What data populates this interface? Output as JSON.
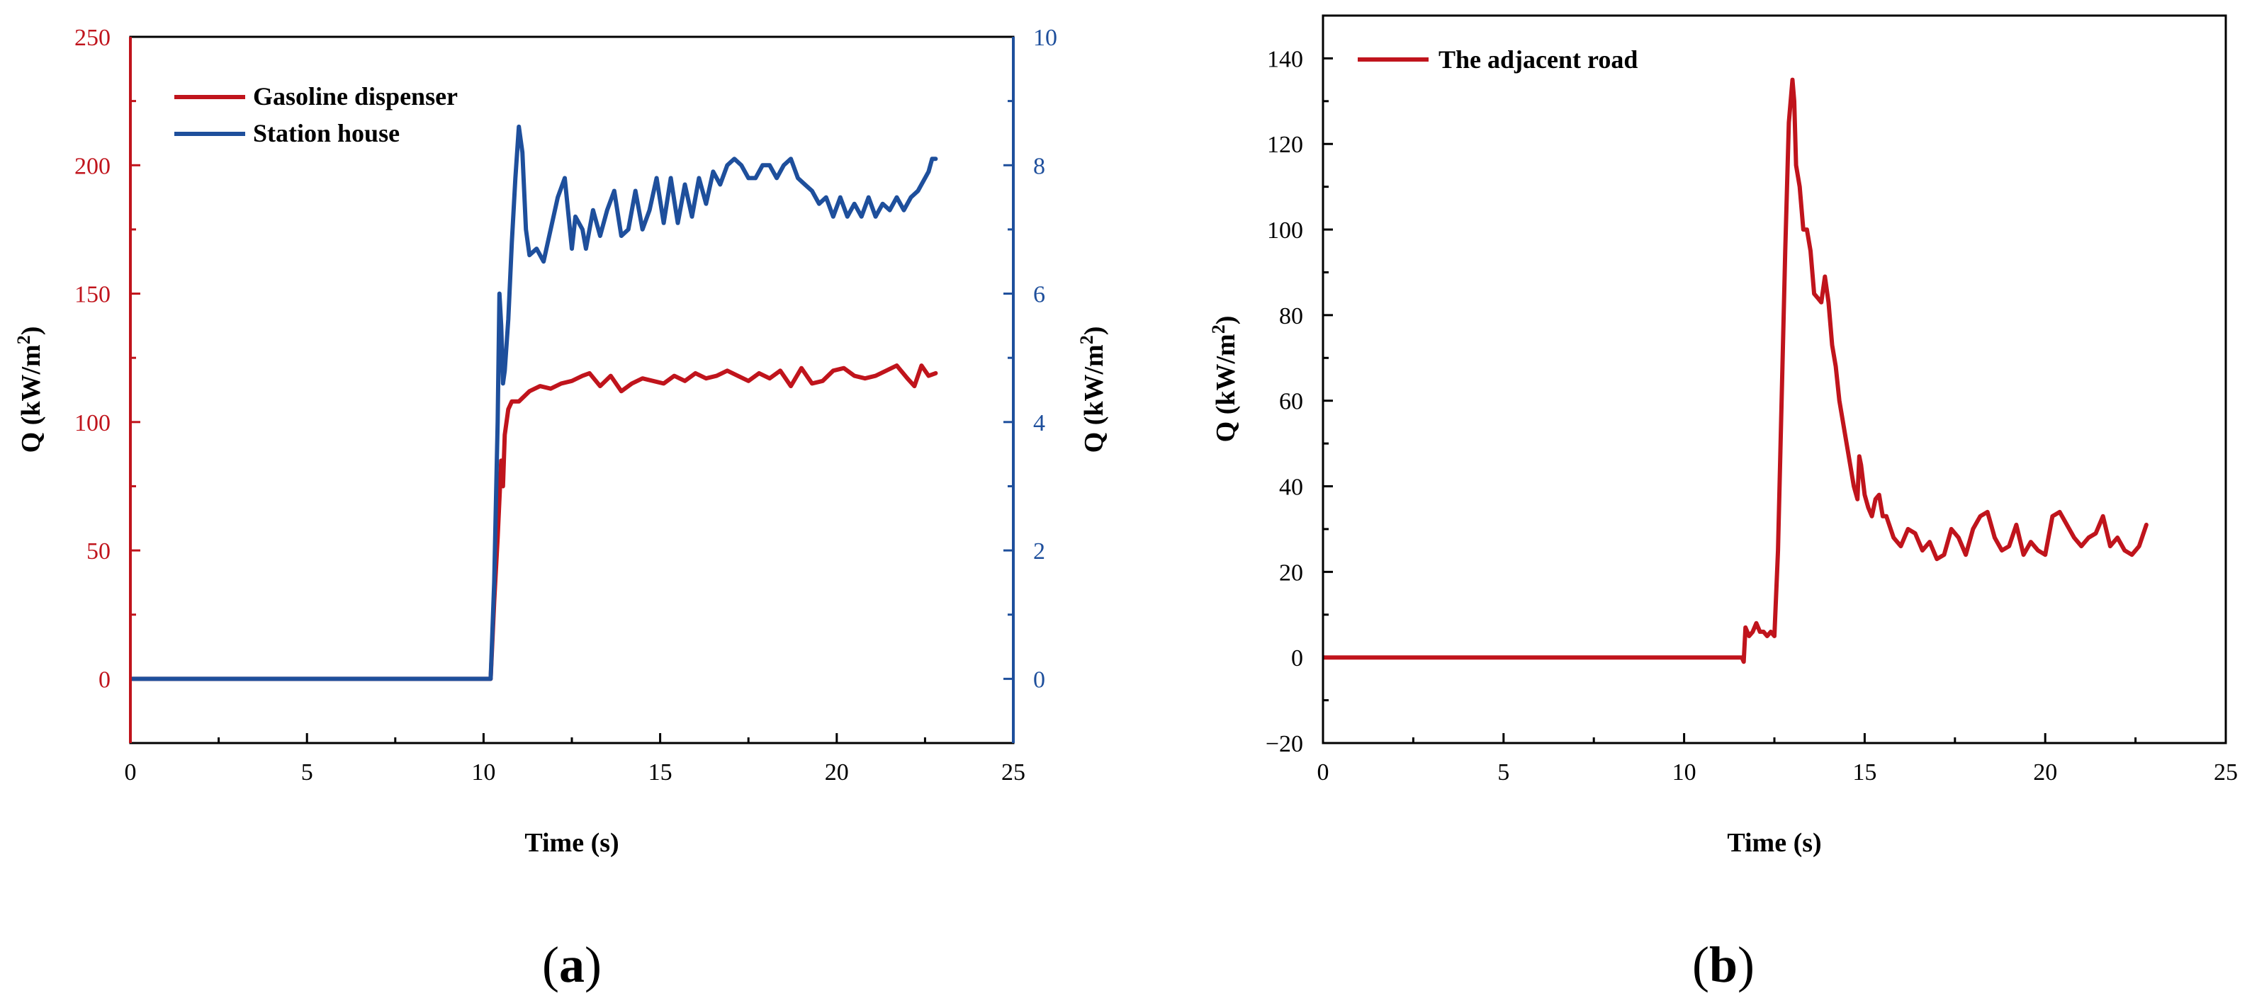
{
  "colors": {
    "red": "#c0141c",
    "blue": "#1e4f9c",
    "black": "#000000"
  },
  "panels": [
    {
      "label_open": "(",
      "label_letter": "a",
      "label_close": ")"
    },
    {
      "label_open": "(",
      "label_letter": "b",
      "label_close": ")"
    }
  ],
  "chart_data": [
    {
      "type": "line",
      "xlabel": "Time (s)",
      "ylabel_main": "Q (kW/m",
      "ylabel_sup": "2",
      "ylabel_end": ")",
      "y2label_main": "Q (kW/m",
      "y2label_sup": "2",
      "y2label_end": ")",
      "xlim": [
        0,
        25
      ],
      "ylim": [
        -25,
        250
      ],
      "y2lim": [
        -1,
        10
      ],
      "xticks": [
        "0",
        "5",
        "10",
        "15",
        "20",
        "25"
      ],
      "yticks": [
        "0",
        "50",
        "100",
        "150",
        "200",
        "250"
      ],
      "y2ticks": [
        "0",
        "2",
        "4",
        "6",
        "8",
        "10"
      ],
      "legend_position": "top-left",
      "series": [
        {
          "name": "Gasoline dispenser",
          "axis": "left",
          "color": "#c0141c",
          "x": [
            0,
            10.2,
            10.3,
            10.4,
            10.45,
            10.5,
            10.55,
            10.6,
            10.7,
            10.8,
            11.0,
            11.3,
            11.6,
            11.9,
            12.2,
            12.5,
            12.8,
            13.0,
            13.3,
            13.6,
            13.9,
            14.2,
            14.5,
            14.8,
            15.1,
            15.4,
            15.7,
            16.0,
            16.3,
            16.6,
            16.9,
            17.2,
            17.5,
            17.8,
            18.1,
            18.4,
            18.7,
            19.0,
            19.3,
            19.6,
            19.9,
            20.2,
            20.5,
            20.8,
            21.1,
            21.4,
            21.7,
            22.0,
            22.2,
            22.4,
            22.6,
            22.8
          ],
          "y": [
            0,
            0,
            30,
            55,
            70,
            85,
            75,
            95,
            105,
            108,
            108,
            112,
            114,
            113,
            115,
            116,
            118,
            119,
            114,
            118,
            112,
            115,
            117,
            116,
            115,
            118,
            116,
            119,
            117,
            118,
            120,
            118,
            116,
            119,
            117,
            120,
            114,
            121,
            115,
            116,
            120,
            121,
            118,
            117,
            118,
            120,
            122,
            117,
            114,
            122,
            118,
            119
          ]
        },
        {
          "name": "Station house",
          "axis": "right",
          "color": "#1e4f9c",
          "x": [
            0,
            10.2,
            10.3,
            10.4,
            10.45,
            10.5,
            10.55,
            10.6,
            10.7,
            10.8,
            10.9,
            11.0,
            11.1,
            11.2,
            11.3,
            11.5,
            11.7,
            11.9,
            12.1,
            12.3,
            12.5,
            12.6,
            12.8,
            12.9,
            13.1,
            13.3,
            13.5,
            13.7,
            13.9,
            14.1,
            14.3,
            14.5,
            14.7,
            14.9,
            15.1,
            15.3,
            15.5,
            15.7,
            15.9,
            16.1,
            16.3,
            16.5,
            16.7,
            16.9,
            17.1,
            17.3,
            17.5,
            17.7,
            17.9,
            18.1,
            18.3,
            18.5,
            18.7,
            18.9,
            19.1,
            19.3,
            19.5,
            19.7,
            19.9,
            20.1,
            20.3,
            20.5,
            20.7,
            20.9,
            21.1,
            21.3,
            21.5,
            21.7,
            21.9,
            22.1,
            22.3,
            22.5,
            22.6,
            22.7,
            22.8
          ],
          "y": [
            0,
            0,
            1.5,
            4.0,
            6.0,
            5.5,
            4.6,
            4.8,
            5.6,
            6.8,
            7.8,
            8.6,
            8.2,
            7.0,
            6.6,
            6.7,
            6.5,
            7.0,
            7.5,
            7.8,
            6.7,
            7.2,
            7.0,
            6.7,
            7.3,
            6.9,
            7.3,
            7.6,
            6.9,
            7.0,
            7.6,
            7.0,
            7.3,
            7.8,
            7.1,
            7.8,
            7.1,
            7.7,
            7.2,
            7.8,
            7.4,
            7.9,
            7.7,
            8.0,
            8.1,
            8.0,
            7.8,
            7.8,
            8.0,
            8.0,
            7.8,
            8.0,
            8.1,
            7.8,
            7.7,
            7.6,
            7.4,
            7.5,
            7.2,
            7.5,
            7.2,
            7.4,
            7.2,
            7.5,
            7.2,
            7.4,
            7.3,
            7.5,
            7.3,
            7.5,
            7.6,
            7.8,
            7.9,
            8.1,
            8.1
          ]
        }
      ]
    },
    {
      "type": "line",
      "xlabel": "Time (s)",
      "ylabel_main": "Q (kW/m",
      "ylabel_sup": "2",
      "ylabel_end": ")",
      "xlim": [
        0,
        25
      ],
      "ylim": [
        -20,
        150
      ],
      "xticks": [
        "0",
        "5",
        "10",
        "15",
        "20",
        "25"
      ],
      "yticks": [
        "−20",
        "0",
        "20",
        "40",
        "60",
        "80",
        "100",
        "120",
        "140"
      ],
      "legend_position": "top-left",
      "series": [
        {
          "name": "The adjacent road",
          "color": "#c0141c",
          "x": [
            0,
            11.6,
            11.65,
            11.7,
            11.8,
            11.9,
            12.0,
            12.1,
            12.2,
            12.3,
            12.4,
            12.5,
            12.6,
            12.7,
            12.8,
            12.9,
            13.0,
            13.05,
            13.1,
            13.2,
            13.3,
            13.4,
            13.5,
            13.6,
            13.7,
            13.8,
            13.9,
            14.0,
            14.1,
            14.2,
            14.3,
            14.4,
            14.5,
            14.6,
            14.7,
            14.8,
            14.85,
            14.9,
            15.0,
            15.1,
            15.2,
            15.3,
            15.4,
            15.5,
            15.6,
            15.8,
            16.0,
            16.2,
            16.4,
            16.6,
            16.8,
            17.0,
            17.2,
            17.4,
            17.6,
            17.8,
            18.0,
            18.2,
            18.4,
            18.6,
            18.8,
            19.0,
            19.2,
            19.4,
            19.6,
            19.8,
            20.0,
            20.2,
            20.4,
            20.6,
            20.8,
            21.0,
            21.2,
            21.4,
            21.6,
            21.8,
            22.0,
            22.2,
            22.4,
            22.6,
            22.8
          ],
          "y": [
            0,
            0,
            -1,
            7,
            5,
            6,
            8,
            6,
            6,
            5,
            6,
            5,
            25,
            60,
            95,
            125,
            135,
            130,
            115,
            110,
            100,
            100,
            95,
            85,
            84,
            83,
            89,
            83,
            73,
            68,
            60,
            55,
            50,
            45,
            40,
            37,
            47,
            45,
            38,
            35,
            33,
            37,
            38,
            33,
            33,
            28,
            26,
            30,
            29,
            25,
            27,
            23,
            24,
            30,
            28,
            24,
            30,
            33,
            34,
            28,
            25,
            26,
            31,
            24,
            27,
            25,
            24,
            33,
            34,
            31,
            28,
            26,
            28,
            29,
            33,
            26,
            28,
            25,
            24,
            26,
            31
          ]
        }
      ]
    }
  ]
}
